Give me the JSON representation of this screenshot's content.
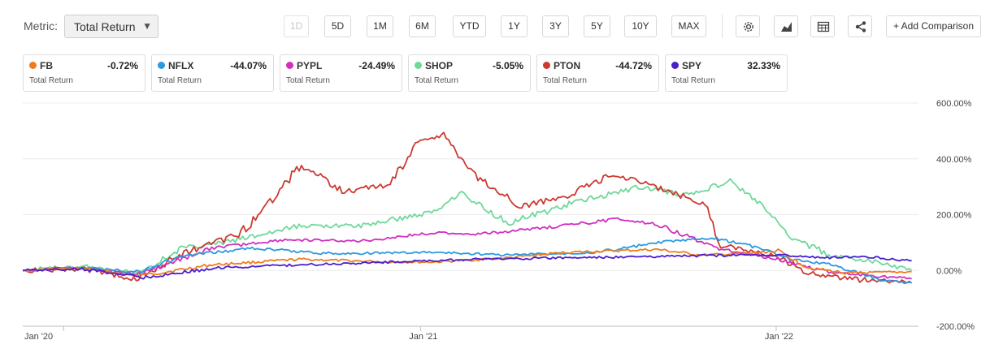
{
  "toolbar": {
    "metric_label": "Metric:",
    "metric_value": "Total Return",
    "metric_caret": "▼",
    "periods": [
      {
        "label": "1D",
        "disabled": true
      },
      {
        "label": "5D",
        "disabled": false
      },
      {
        "label": "1M",
        "disabled": false
      },
      {
        "label": "6M",
        "disabled": false
      },
      {
        "label": "YTD",
        "disabled": false
      },
      {
        "label": "1Y",
        "disabled": false
      },
      {
        "label": "3Y",
        "disabled": false
      },
      {
        "label": "5Y",
        "disabled": false
      },
      {
        "label": "10Y",
        "disabled": false
      },
      {
        "label": "MAX",
        "disabled": false
      }
    ],
    "icons": [
      "gear-icon",
      "chart-type-icon",
      "table-icon",
      "share-icon"
    ],
    "add_comparison": "+ Add Comparison"
  },
  "legend": [
    {
      "ticker": "FB",
      "value": "-0.72%",
      "sub": "Total Return",
      "color": "#ee7d1f"
    },
    {
      "ticker": "NFLX",
      "value": "-44.07%",
      "sub": "Total Return",
      "color": "#2a9ae0"
    },
    {
      "ticker": "PYPL",
      "value": "-24.49%",
      "sub": "Total Return",
      "color": "#d12fc0"
    },
    {
      "ticker": "SHOP",
      "value": "-5.05%",
      "sub": "Total Return",
      "color": "#6fd89a"
    },
    {
      "ticker": "PTON",
      "value": "-44.72%",
      "sub": "Total Return",
      "color": "#cc3a32"
    },
    {
      "ticker": "SPY",
      "value": "32.33%",
      "sub": "Total Return",
      "color": "#4a1fcf"
    }
  ],
  "chart_data": {
    "type": "line",
    "y_ticks": [
      "600.00%",
      "400.00%",
      "200.00%",
      "0.00%",
      "-200.00%"
    ],
    "x_ticks": [
      "Jan '20",
      "Jan '21",
      "Jan '22"
    ],
    "ylim": [
      -200,
      600
    ],
    "xlim": [
      "2019-11-20",
      "2022-05-27"
    ],
    "grid": "horizontal",
    "series": [
      {
        "name": "FB",
        "color": "#ee7d1f",
        "x": [
          "2019-11-20",
          "2020-01-20",
          "2020-03-18",
          "2020-06-01",
          "2020-09-01",
          "2020-12-01",
          "2021-01-15",
          "2021-04-01",
          "2021-06-01",
          "2021-09-01",
          "2021-10-15",
          "2021-12-01",
          "2022-01-03",
          "2022-02-03",
          "2022-03-15",
          "2022-05-20"
        ],
        "y": [
          0,
          8,
          -20,
          20,
          40,
          30,
          30,
          45,
          65,
          75,
          55,
          60,
          70,
          10,
          -10,
          -5
        ]
      },
      {
        "name": "NFLX",
        "color": "#2a9ae0",
        "x": [
          "2019-11-20",
          "2020-01-20",
          "2020-03-18",
          "2020-05-01",
          "2020-07-10",
          "2020-10-01",
          "2021-01-15",
          "2021-04-01",
          "2021-07-01",
          "2021-09-15",
          "2021-11-01",
          "2021-12-15",
          "2022-01-15",
          "2022-03-01",
          "2022-04-20",
          "2022-05-20"
        ],
        "y": [
          0,
          10,
          -5,
          50,
          80,
          60,
          65,
          55,
          65,
          105,
          115,
          80,
          40,
          20,
          -35,
          -45
        ]
      },
      {
        "name": "PYPL",
        "color": "#d12fc0",
        "x": [
          "2019-11-20",
          "2020-01-20",
          "2020-03-18",
          "2020-06-01",
          "2020-08-15",
          "2020-11-01",
          "2021-01-15",
          "2021-03-01",
          "2021-05-01",
          "2021-07-25",
          "2021-09-01",
          "2021-11-01",
          "2022-01-03",
          "2022-03-01",
          "2022-05-20"
        ],
        "y": [
          0,
          10,
          -15,
          80,
          110,
          105,
          135,
          130,
          150,
          185,
          165,
          80,
          40,
          -10,
          -30
        ]
      },
      {
        "name": "SHOP",
        "color": "#6fd89a",
        "x": [
          "2019-11-20",
          "2020-01-20",
          "2020-03-18",
          "2020-05-01",
          "2020-06-15",
          "2020-09-01",
          "2020-11-01",
          "2021-01-15",
          "2021-02-10",
          "2021-04-01",
          "2021-06-15",
          "2021-08-15",
          "2021-10-01",
          "2021-11-15",
          "2021-12-15",
          "2022-01-15",
          "2022-03-01",
          "2022-04-15",
          "2022-05-20"
        ],
        "y": [
          0,
          15,
          -10,
          80,
          100,
          160,
          160,
          210,
          280,
          170,
          250,
          300,
          270,
          320,
          240,
          120,
          50,
          30,
          0
        ]
      },
      {
        "name": "PTON",
        "color": "#cc3a32",
        "x": [
          "2019-11-20",
          "2020-01-20",
          "2020-03-18",
          "2020-05-01",
          "2020-07-01",
          "2020-09-01",
          "2020-10-15",
          "2020-12-01",
          "2021-01-01",
          "2021-01-25",
          "2021-03-01",
          "2021-04-15",
          "2021-06-01",
          "2021-07-15",
          "2021-08-15",
          "2021-09-15",
          "2021-10-20",
          "2021-11-05",
          "2021-12-01",
          "2022-01-03",
          "2022-02-03",
          "2022-03-15",
          "2022-05-20"
        ],
        "y": [
          0,
          5,
          -30,
          60,
          130,
          380,
          280,
          310,
          470,
          480,
          330,
          230,
          270,
          340,
          320,
          280,
          240,
          90,
          70,
          50,
          -10,
          -30,
          -45
        ]
      },
      {
        "name": "SPY",
        "color": "#4a1fcf",
        "x": [
          "2019-11-20",
          "2020-01-20",
          "2020-03-23",
          "2020-06-08",
          "2020-09-01",
          "2020-12-01",
          "2021-03-01",
          "2021-06-01",
          "2021-09-01",
          "2021-12-01",
          "2022-01-03",
          "2022-02-20",
          "2022-04-01",
          "2022-05-20"
        ],
        "y": [
          0,
          5,
          -25,
          10,
          20,
          30,
          40,
          45,
          50,
          55,
          55,
          45,
          50,
          35
        ]
      }
    ]
  }
}
